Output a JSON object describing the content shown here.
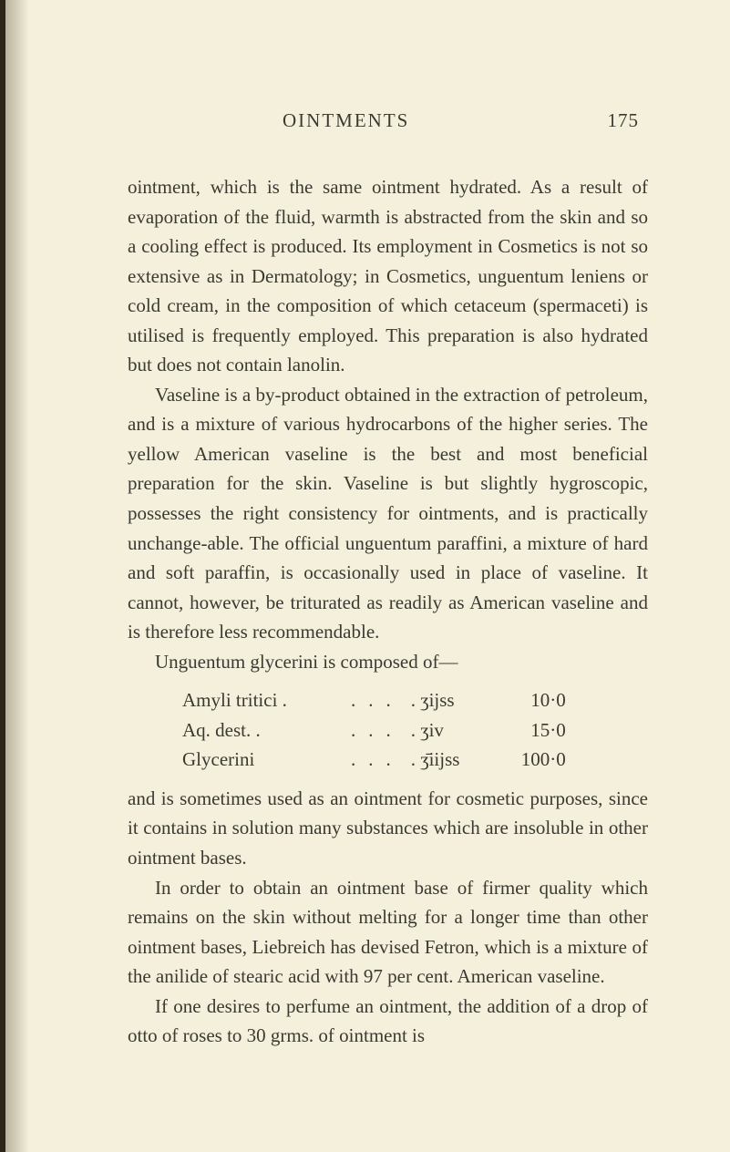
{
  "page": {
    "header_title": "OINTMENTS",
    "page_number": "175"
  },
  "paragraphs": {
    "p1": "ointment, which is the same ointment hydrated. As a result of evaporation of the fluid, warmth is abstracted from the skin and so a cooling effect is produced. Its employment in Cosmetics is not so extensive as in Dermatology; in Cosmetics, unguentum leniens or cold cream, in the composition of which cetaceum (spermaceti) is utilised is frequently employed. This preparation is also hydrated but does not contain lanolin.",
    "p2": "Vaseline is a by-product obtained in the extraction of petroleum, and is a mixture of various hydrocarbons of the higher series. The yellow American vaseline is the best and most beneficial preparation for the skin. Vaseline is but slightly hygroscopic, possesses the right consistency for ointments, and is practically unchange-able. The official unguentum paraffini, a mixture of hard and soft paraffin, is occasionally used in place of vaseline. It cannot, however, be triturated as readily as American vaseline and is therefore less recommendable.",
    "p3": "Unguentum glycerini is composed of—",
    "p4": "and is sometimes used as an ointment for cosmetic purposes, since it contains in solution many substances which are insoluble in other ointment bases.",
    "p5": "In order to obtain an ointment base of firmer quality which remains on the skin without melting for a longer time than other ointment bases, Liebreich has devised Fetron, which is a mixture of the anilide of stearic acid with 97 per cent. American vaseline.",
    "p6": "If one desires to perfume an ointment, the addition of a drop of otto of roses to 30 grms. of ointment is"
  },
  "table": {
    "rows": [
      {
        "label": "Amyli tritici .",
        "dots": "...",
        "measure": ". ʒijss",
        "value": "10·0"
      },
      {
        "label": "Aq. dest. .",
        "dots": "...",
        "measure": ". ʒiv",
        "value": "15·0"
      },
      {
        "label": "Glycerini",
        "dots": "...",
        "measure": ". ʒ̄iijss",
        "value": "100·0"
      }
    ]
  },
  "style": {
    "background_color": "#f4f0dc",
    "text_color": "#3a3a32",
    "body_fontsize": 21,
    "header_fontsize": 21,
    "line_height": 1.55
  }
}
